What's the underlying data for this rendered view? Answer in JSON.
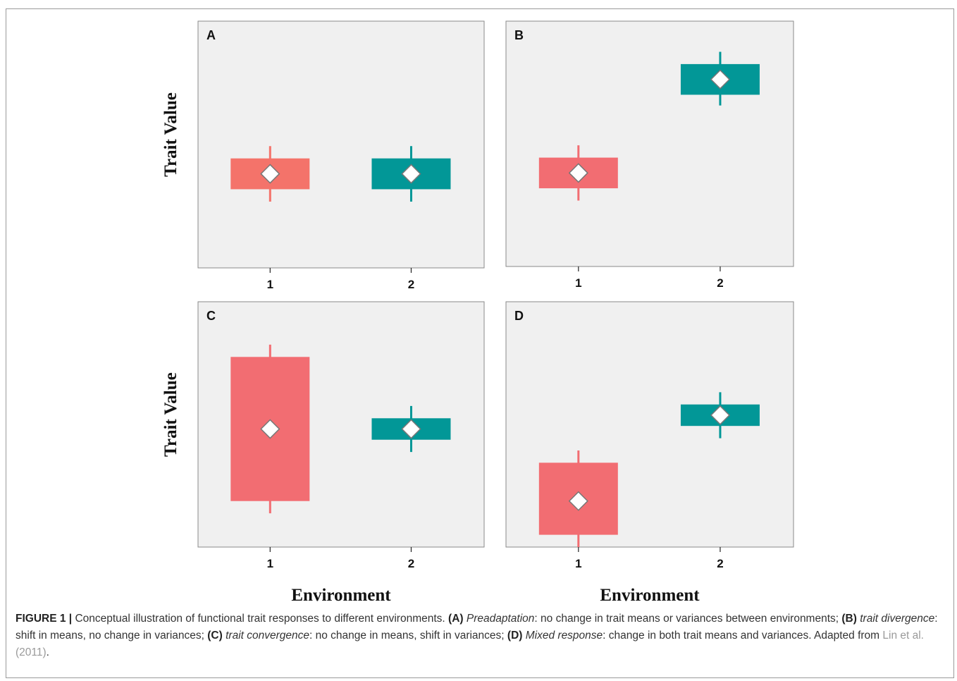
{
  "chart_data": [
    {
      "type": "box",
      "panel": "A",
      "ylabel": "Trait Value",
      "categories": [
        "1",
        "2"
      ],
      "boxes": [
        {
          "category": "1",
          "whisker_low": 2.15,
          "q1": 2.55,
          "mean": 3.05,
          "q3": 3.55,
          "whisker_high": 3.95,
          "color": "#f4736a"
        },
        {
          "category": "2",
          "whisker_low": 2.15,
          "q1": 2.55,
          "mean": 3.05,
          "q3": 3.55,
          "whisker_high": 3.95,
          "color": "#029797"
        }
      ]
    },
    {
      "type": "box",
      "panel": "B",
      "categories": [
        "1",
        "2"
      ],
      "boxes": [
        {
          "category": "1",
          "whisker_low": 2.15,
          "q1": 2.55,
          "mean": 3.05,
          "q3": 3.55,
          "whisker_high": 3.95,
          "color": "#f26d72"
        },
        {
          "category": "2",
          "whisker_low": 5.25,
          "q1": 5.6,
          "mean": 6.1,
          "q3": 6.6,
          "whisker_high": 7.0,
          "color": "#029797"
        }
      ]
    },
    {
      "type": "box",
      "panel": "C",
      "ylabel": "Trait Value",
      "xlabel": "Environment",
      "categories": [
        "1",
        "2"
      ],
      "boxes": [
        {
          "category": "1",
          "whisker_low": 1.1,
          "q1": 1.5,
          "mean": 3.85,
          "q3": 6.2,
          "whisker_high": 6.6,
          "color": "#f26d72"
        },
        {
          "category": "2",
          "whisker_low": 3.1,
          "q1": 3.5,
          "mean": 3.85,
          "q3": 4.2,
          "whisker_high": 4.6,
          "color": "#029797"
        }
      ]
    },
    {
      "type": "box",
      "panel": "D",
      "xlabel": "Environment",
      "categories": [
        "1",
        "2"
      ],
      "boxes": [
        {
          "category": "1",
          "whisker_low": 0.0,
          "q1": 0.4,
          "mean": 1.5,
          "q3": 2.75,
          "whisker_high": 3.15,
          "color": "#f26d72"
        },
        {
          "category": "2",
          "whisker_low": 3.55,
          "q1": 3.95,
          "mean": 4.3,
          "q3": 4.65,
          "whisker_high": 5.05,
          "color": "#029797"
        }
      ]
    }
  ],
  "caption": {
    "figure_label": "FIGURE 1 |",
    "intro": " Conceptual illustration of functional trait responses to different environments. ",
    "a_label": "(A)",
    "a_term": "Preadaptation",
    "a_text": ": no change in trait means or variances between environments; ",
    "b_label": "(B)",
    "b_term": "trait divergence",
    "b_text": ": shift in means, no change in variances; ",
    "c_label": "(C)",
    "c_term": "trait convergence",
    "c_text": ": no change in means, shift in variances; ",
    "d_label": "(D)",
    "d_term": "Mixed response",
    "d_text": ": change in both trait means and variances. Adapted from ",
    "ref": "Lin et al. (2011)",
    "end": "."
  }
}
